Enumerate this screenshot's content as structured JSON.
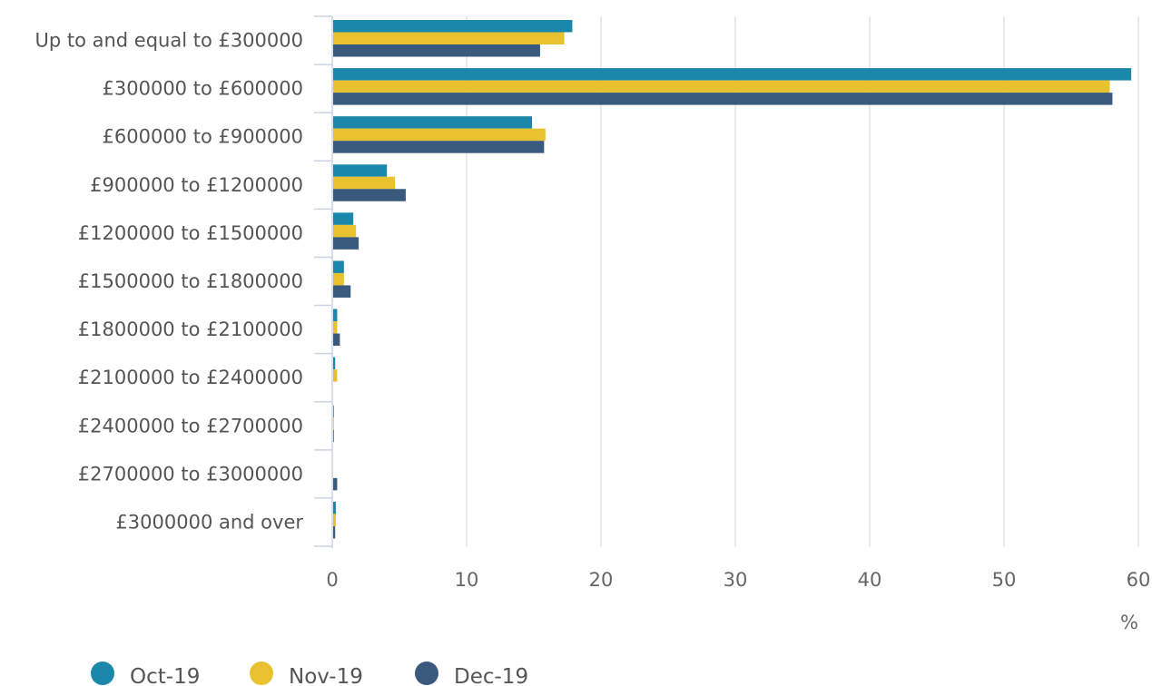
{
  "chart_data": {
    "type": "bar",
    "orientation": "horizontal",
    "title": "",
    "xlabel": "%",
    "ylabel": "",
    "xlim": [
      0,
      60
    ],
    "xticks": [
      0,
      10,
      20,
      30,
      40,
      50,
      60
    ],
    "grid": "vertical",
    "legend_position": "bottom-left",
    "categories": [
      "Up to and equal to £300000",
      "£300000 to £600000",
      "£600000 to £900000",
      "£900000 to £1200000",
      "£1200000 to £1500000",
      "£1500000 to £1800000",
      "£1800000 to £2100000",
      "£2100000 to £2400000",
      "£2400000 to £2700000",
      "£2700000 to £3000000",
      "£3000000 and over"
    ],
    "series": [
      {
        "name": "Oct-19",
        "color": "#1b87aa",
        "values": [
          17.8,
          59.4,
          14.8,
          4.0,
          1.5,
          0.8,
          0.3,
          0.15,
          0.05,
          0.0,
          0.2
        ]
      },
      {
        "name": "Nov-19",
        "color": "#e8c22e",
        "values": [
          17.2,
          57.8,
          15.8,
          4.6,
          1.7,
          0.8,
          0.3,
          0.3,
          0.05,
          0.0,
          0.2
        ]
      },
      {
        "name": "Dec-19",
        "color": "#395a7c",
        "values": [
          15.4,
          58.0,
          15.7,
          5.4,
          1.9,
          1.3,
          0.5,
          0.0,
          0.05,
          0.3,
          0.15
        ]
      }
    ]
  }
}
